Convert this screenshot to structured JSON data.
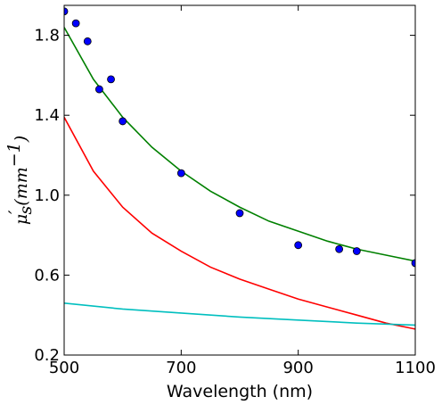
{
  "chart_data": {
    "type": "scatter",
    "xlabel": "Wavelength (nm)",
    "ylabel_main": "μ",
    "ylabel_prime": "′",
    "ylabel_sub": "s",
    "ylabel_rest": "(mm",
    "ylabel_sup": "−1",
    "ylabel_close": ")",
    "xlim": [
      500,
      1100
    ],
    "ylim": [
      0.2,
      1.95
    ],
    "x_ticks": [
      500,
      700,
      900,
      1100
    ],
    "x_tick_labels": [
      "500",
      "700",
      "900",
      "1100"
    ],
    "y_ticks": [
      0.2,
      0.6,
      1.0,
      1.4,
      1.8
    ],
    "y_tick_labels": [
      "0.2",
      "0.6",
      "1.0",
      "1.4",
      "1.8"
    ],
    "grid": false,
    "series": [
      {
        "kind": "points",
        "color": "#0000ff",
        "x": [
          500,
          520,
          540,
          560,
          580,
          600,
          700,
          800,
          900,
          970,
          1000,
          1100
        ],
        "y": [
          1.92,
          1.86,
          1.77,
          1.53,
          1.58,
          1.37,
          1.11,
          0.91,
          0.75,
          0.73,
          0.72,
          0.66
        ]
      },
      {
        "kind": "line",
        "color": "#008000",
        "x": [
          500,
          550,
          600,
          650,
          700,
          750,
          800,
          850,
          900,
          950,
          1000,
          1050,
          1100
        ],
        "y": [
          1.84,
          1.58,
          1.39,
          1.24,
          1.12,
          1.02,
          0.94,
          0.87,
          0.82,
          0.77,
          0.73,
          0.7,
          0.67
        ]
      },
      {
        "kind": "line",
        "color": "#ff0000",
        "x": [
          500,
          550,
          600,
          650,
          700,
          750,
          800,
          850,
          900,
          950,
          1000,
          1050,
          1100
        ],
        "y": [
          1.39,
          1.12,
          0.94,
          0.81,
          0.72,
          0.64,
          0.58,
          0.53,
          0.48,
          0.44,
          0.4,
          0.36,
          0.33
        ]
      },
      {
        "kind": "line",
        "color": "#00bfbf",
        "x": [
          500,
          600,
          700,
          800,
          900,
          1000,
          1100
        ],
        "y": [
          0.46,
          0.43,
          0.41,
          0.39,
          0.375,
          0.36,
          0.35
        ]
      }
    ]
  }
}
